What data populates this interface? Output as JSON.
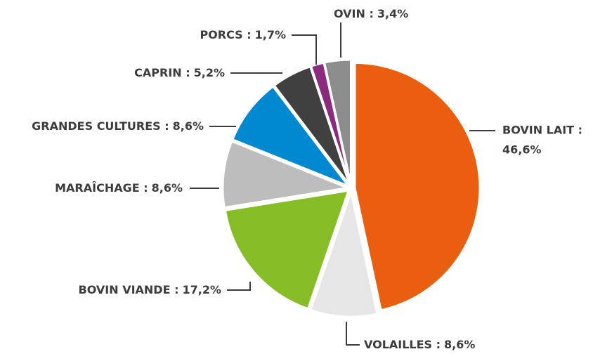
{
  "chart_data": {
    "type": "pie",
    "categories": [
      "BOVIN LAIT :",
      "VOLAILLES :",
      "BOVIN VIANDE :",
      "MARAÎCHAGE :",
      "GRANDES CULTURES :",
      "CAPRIN :",
      "PORCS :",
      "OVIN :"
    ],
    "values": [
      46.6,
      8.6,
      17.2,
      8.6,
      8.6,
      5.2,
      1.7,
      3.4
    ],
    "value_labels": [
      "46,6%",
      "8,6%",
      "17,2%",
      "8,6%",
      "8,6%",
      "5,2%",
      "1,7%",
      "3,4%"
    ],
    "colors": [
      "#e95e0f",
      "#e6e6e6",
      "#86bc25",
      "#bdbdbd",
      "#0089d0",
      "#404040",
      "#8b2a7e",
      "#8c8c8c"
    ]
  }
}
